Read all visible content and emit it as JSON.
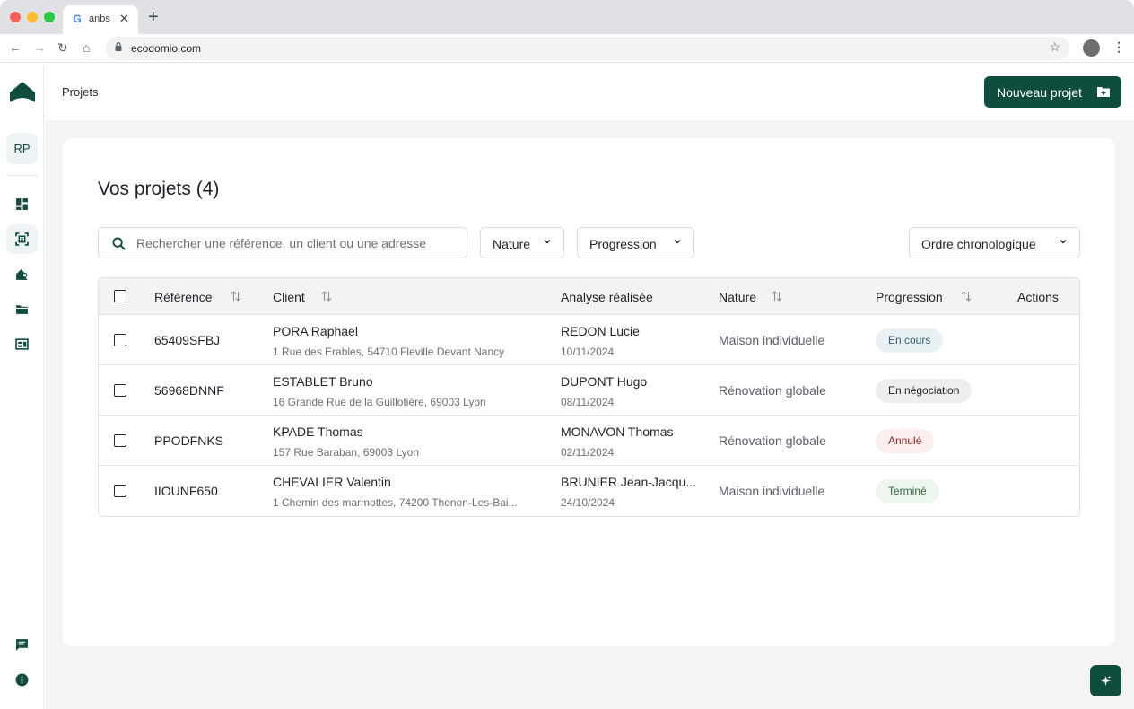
{
  "browser": {
    "tab_title": "anbs",
    "tab_close": "✕",
    "new_tab": "+",
    "url": "ecodomio.com"
  },
  "sidebar": {
    "avatar_initials": "RP"
  },
  "header": {
    "breadcrumb": "Projets",
    "new_project_label": "Nouveau projet"
  },
  "main": {
    "title": "Vos projets (4)",
    "search_placeholder": "Rechercher une référence, un client ou une adresse",
    "filters": {
      "nature": "Nature",
      "progression": "Progression",
      "sort": "Ordre chronologique"
    },
    "columns": {
      "reference": "Référence",
      "client": "Client",
      "analyse": "Analyse réalisée",
      "nature": "Nature",
      "progression": "Progression",
      "actions": "Actions"
    },
    "rows": [
      {
        "reference": "65409SFBJ",
        "client_name": "PORA Raphael",
        "client_address": "1 Rue des Erables, 54710 Fleville Devant Nancy",
        "analyst": "REDON Lucie",
        "date": "10/11/2024",
        "nature": "Maison individuelle",
        "status": "En cours"
      },
      {
        "reference": "56968DNNF",
        "client_name": "ESTABLET Bruno",
        "client_address": "16 Grande Rue de la Guillotière, 69003 Lyon",
        "analyst": "DUPONT Hugo",
        "date": "08/11/2024",
        "nature": "Rénovation globale",
        "status": "En négociation"
      },
      {
        "reference": "PPODFNKS",
        "client_name": "KPADE Thomas",
        "client_address": "157 Rue Baraban, 69003 Lyon",
        "analyst": "MONAVON Thomas",
        "date": "02/11/2024",
        "nature": "Rénovation globale",
        "status": "Annulé"
      },
      {
        "reference": "IIOUNF650",
        "client_name": "CHEVALIER Valentin",
        "client_address": "1 Chemin des marmottes, 74200 Thonon-Les-Bai...",
        "analyst": "BRUNIER Jean-Jacqu...",
        "date": "24/10/2024",
        "nature": "Maison individuelle",
        "status": "Terminé"
      }
    ]
  },
  "colors": {
    "brand": "#0f4d3f",
    "status_en_cours_bg": "#eaf1f5",
    "status_en_cours_fg": "#2f5f7a",
    "status_negociation_bg": "#eeeeee",
    "status_negociation_fg": "#1f2328",
    "status_annule_bg": "#fdeeee",
    "status_annule_fg": "#8a2a2a",
    "status_termine_bg": "#edf7ef",
    "status_termine_fg": "#2f6b3b"
  },
  "icons": [
    "google-favicon",
    "back-arrow-icon",
    "forward-arrow-icon",
    "reload-icon",
    "home-icon",
    "lock-icon",
    "star-icon",
    "profile-icon",
    "more-vert-icon",
    "house-logo",
    "dashboard-icon",
    "projects-icon",
    "clients-icon",
    "folder-icon",
    "catalog-icon",
    "chat-icon",
    "info-icon",
    "folder-add-icon",
    "search-icon",
    "chevron-down-icon",
    "sort-icon",
    "sparkle-icon"
  ]
}
